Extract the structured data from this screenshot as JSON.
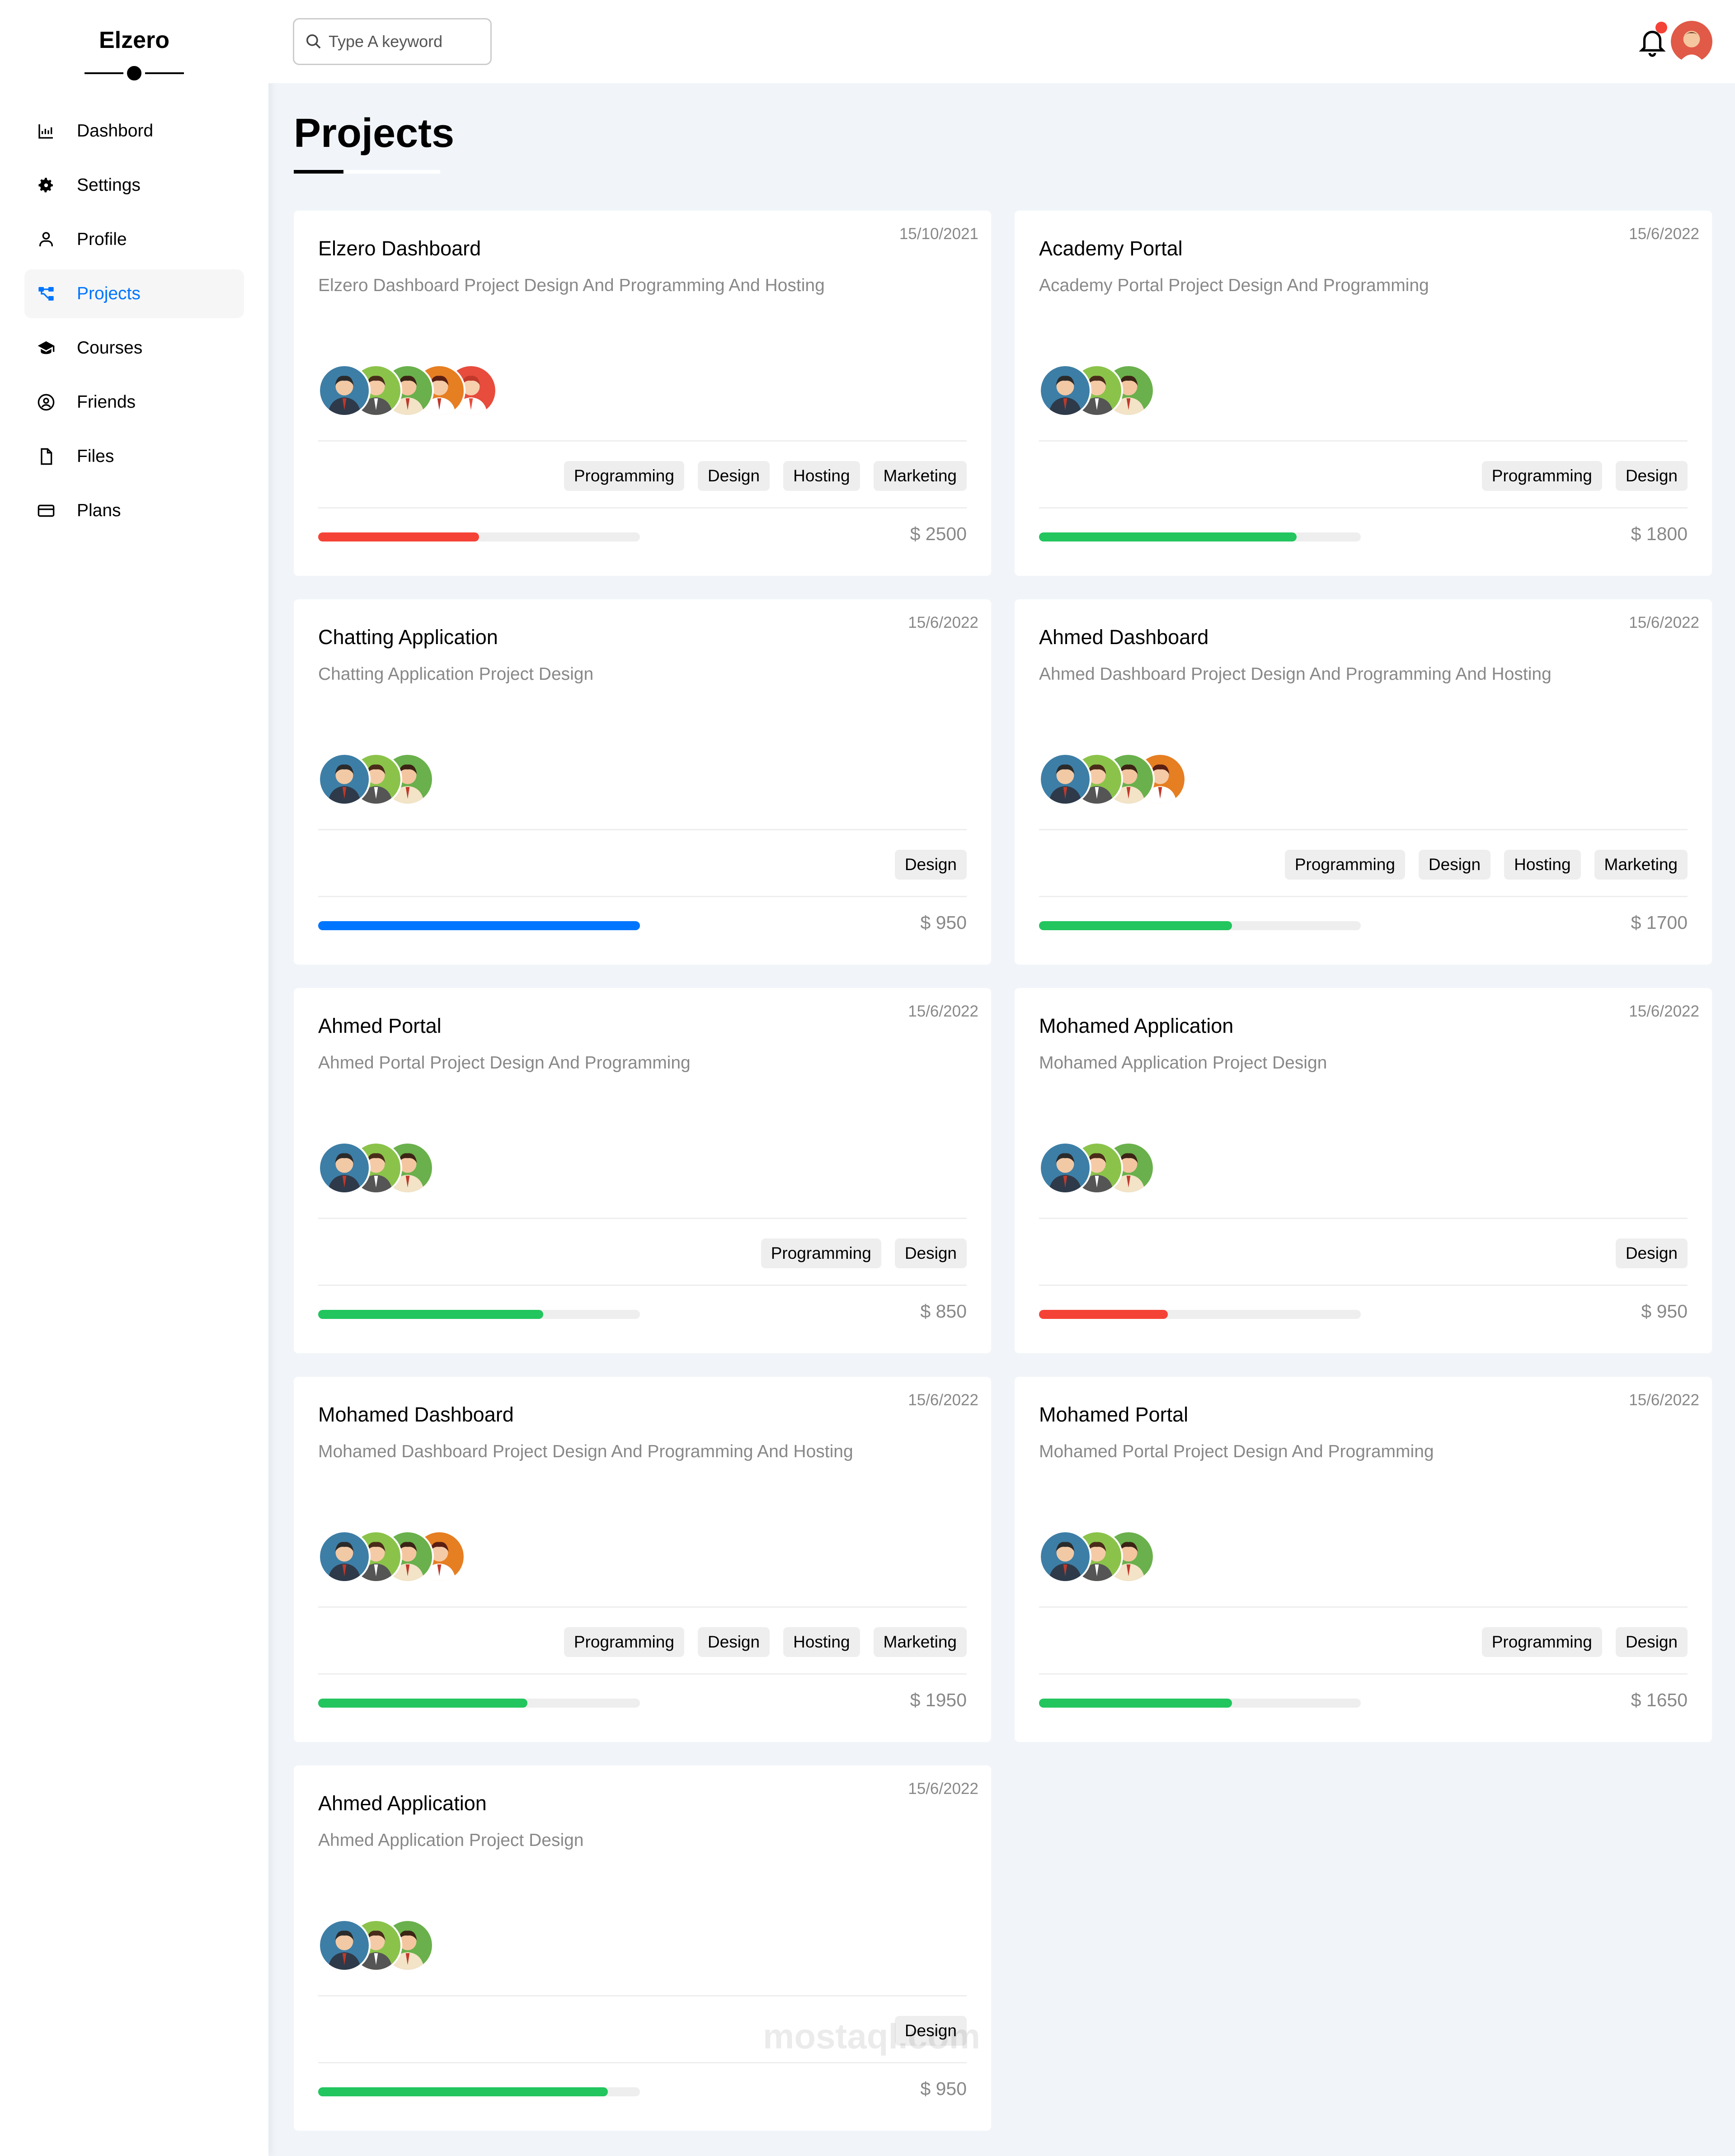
{
  "sidebar": {
    "brand": "Elzero",
    "items": [
      {
        "label": "Dashbord",
        "icon": "chart-icon",
        "active": false
      },
      {
        "label": "Settings",
        "icon": "gear-icon",
        "active": false
      },
      {
        "label": "Profile",
        "icon": "user-icon",
        "active": false
      },
      {
        "label": "Projects",
        "icon": "diagram-icon",
        "active": true
      },
      {
        "label": "Courses",
        "icon": "graduation-cap-icon",
        "active": false
      },
      {
        "label": "Friends",
        "icon": "user-circle-icon",
        "active": false
      },
      {
        "label": "Files",
        "icon": "file-icon",
        "active": false
      },
      {
        "label": "Plans",
        "icon": "credit-card-icon",
        "active": false
      }
    ]
  },
  "header": {
    "search_placeholder": "Type A keyword"
  },
  "main": {
    "title": "Projects"
  },
  "colors": {
    "accent": "#0075ff",
    "red": "#f44336",
    "green": "#22c55e",
    "blue": "#0075ff"
  },
  "projects": [
    {
      "title": "Elzero Dashboard",
      "date": "15/10/2021",
      "desc": "Elzero Dashboard Project Design And Programming And Hosting",
      "members": 5,
      "tags": [
        "Programming",
        "Design",
        "Hosting",
        "Marketing"
      ],
      "progress": 0.5,
      "progress_color": "red",
      "price": "$ 2500"
    },
    {
      "title": "Academy Portal",
      "date": "15/6/2022",
      "desc": "Academy Portal Project Design And Programming",
      "members": 3,
      "tags": [
        "Programming",
        "Design"
      ],
      "progress": 0.8,
      "progress_color": "green",
      "price": "$ 1800"
    },
    {
      "title": "Chatting Application",
      "date": "15/6/2022",
      "desc": "Chatting Application Project Design",
      "members": 3,
      "tags": [
        "Design"
      ],
      "progress": 1.0,
      "progress_color": "blue",
      "price": "$ 950"
    },
    {
      "title": "Ahmed Dashboard",
      "date": "15/6/2022",
      "desc": "Ahmed Dashboard Project Design And Programming And Hosting",
      "members": 4,
      "tags": [
        "Programming",
        "Design",
        "Hosting",
        "Marketing"
      ],
      "progress": 0.6,
      "progress_color": "green",
      "price": "$ 1700"
    },
    {
      "title": "Ahmed Portal",
      "date": "15/6/2022",
      "desc": "Ahmed Portal Project Design And Programming",
      "members": 3,
      "tags": [
        "Programming",
        "Design"
      ],
      "progress": 0.7,
      "progress_color": "green",
      "price": "$ 850"
    },
    {
      "title": "Mohamed Application",
      "date": "15/6/2022",
      "desc": "Mohamed Application Project Design",
      "members": 3,
      "tags": [
        "Design"
      ],
      "progress": 0.4,
      "progress_color": "red",
      "price": "$ 950"
    },
    {
      "title": "Mohamed Dashboard",
      "date": "15/6/2022",
      "desc": "Mohamed Dashboard Project Design And Programming And Hosting",
      "members": 4,
      "tags": [
        "Programming",
        "Design",
        "Hosting",
        "Marketing"
      ],
      "progress": 0.65,
      "progress_color": "green",
      "price": "$ 1950"
    },
    {
      "title": "Mohamed Portal",
      "date": "15/6/2022",
      "desc": "Mohamed Portal Project Design And Programming",
      "members": 3,
      "tags": [
        "Programming",
        "Design"
      ],
      "progress": 0.6,
      "progress_color": "green",
      "price": "$ 1650"
    },
    {
      "title": "Ahmed Application",
      "date": "15/6/2022",
      "desc": "Ahmed Application Project Design",
      "members": 3,
      "tags": [
        "Design"
      ],
      "progress": 0.9,
      "progress_color": "green",
      "price": "$ 950"
    }
  ],
  "watermark": "mostaql.com"
}
